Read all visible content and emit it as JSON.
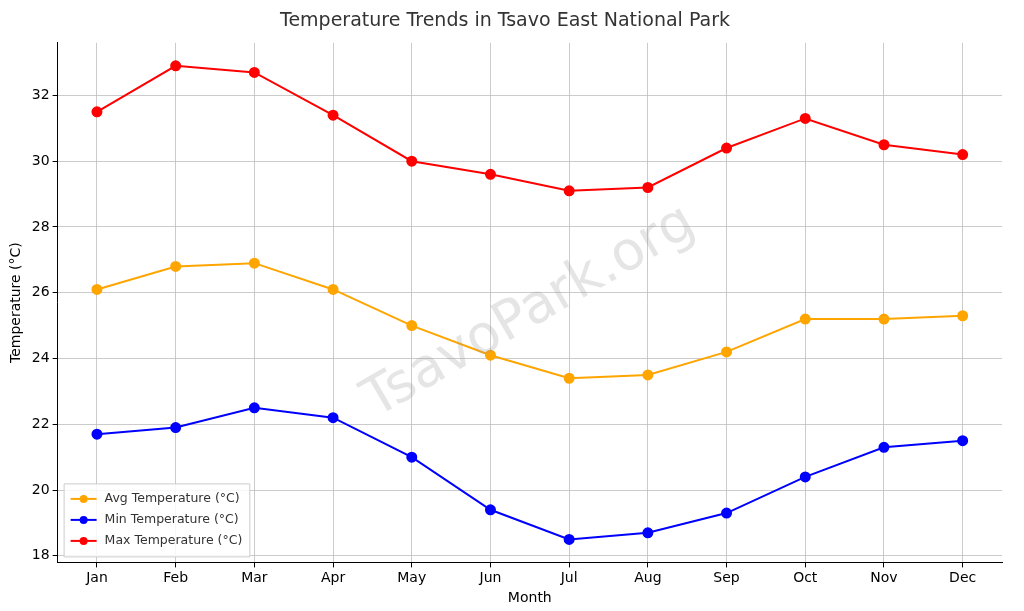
{
  "chart_data": {
    "type": "line",
    "title": "Temperature Trends in Tsavo East National Park",
    "x_label": "Month",
    "y_label": "Temperature (°C)",
    "watermark": "TsavoPark.org",
    "categories": [
      "Jan",
      "Feb",
      "Mar",
      "Apr",
      "May",
      "Jun",
      "Jul",
      "Aug",
      "Sep",
      "Oct",
      "Nov",
      "Dec"
    ],
    "series": [
      {
        "name": "Avg Temperature (°C)",
        "color": "#ffa500",
        "marker": "circle",
        "line_style": "solid",
        "values": [
          26.1,
          26.8,
          26.9,
          26.1,
          25.0,
          24.1,
          23.4,
          23.5,
          24.2,
          25.2,
          25.2,
          25.3
        ]
      },
      {
        "name": "Min Temperature (°C)",
        "color": "#0000ff",
        "marker": "circle",
        "line_style": "solid",
        "values": [
          21.7,
          21.9,
          22.5,
          22.2,
          21.0,
          19.4,
          18.5,
          18.7,
          19.3,
          20.4,
          21.3,
          21.5
        ]
      },
      {
        "name": "Max Temperature (°C)",
        "color": "#ff0000",
        "marker": "circle",
        "line_style": "solid",
        "values": [
          31.5,
          32.9,
          32.7,
          31.4,
          30.0,
          29.6,
          29.1,
          29.2,
          30.4,
          31.3,
          30.5,
          30.2
        ]
      }
    ],
    "ylim": [
      17.8,
      33.6
    ],
    "yticks": [
      18,
      20,
      22,
      24,
      26,
      28,
      30,
      32
    ],
    "grid": true,
    "legend": "lower left"
  }
}
